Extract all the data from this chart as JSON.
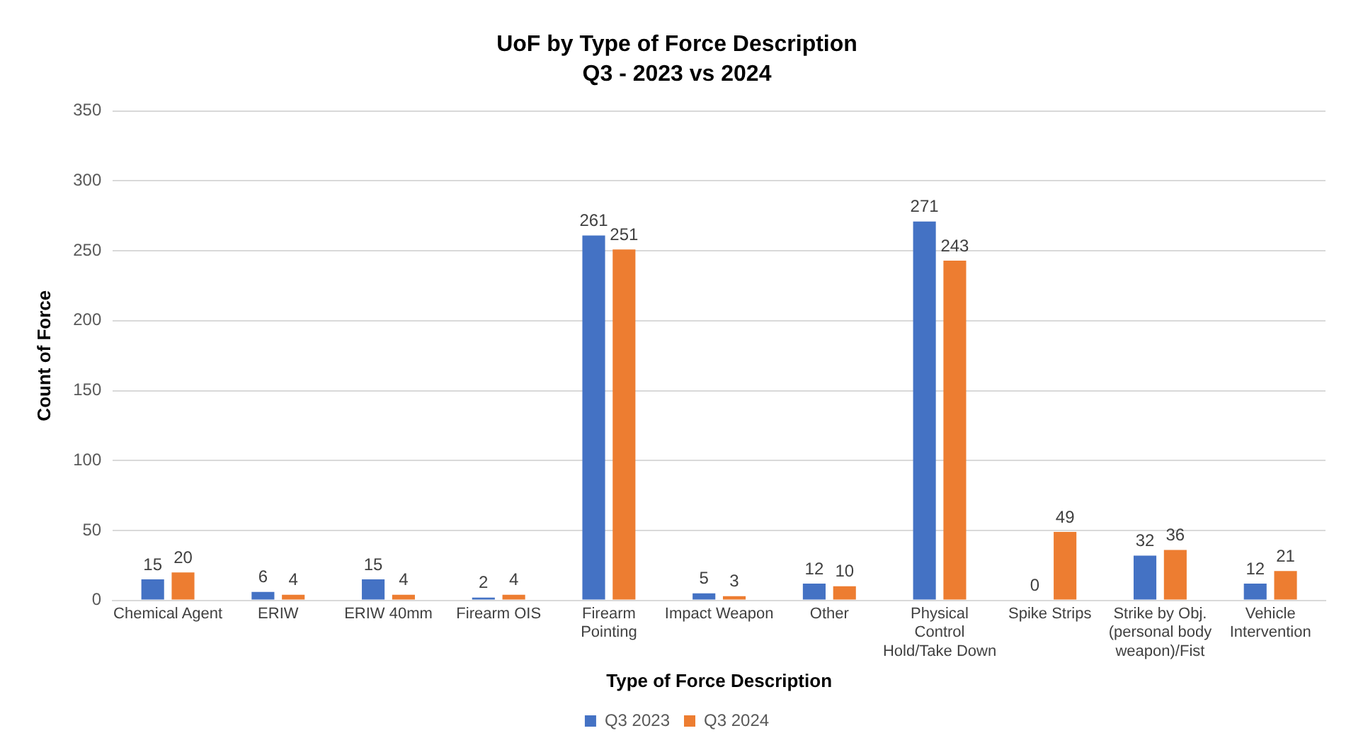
{
  "chart_data": {
    "type": "bar",
    "title": "UoF by Type of Force Description",
    "subtitle": "Q3 - 2023 vs 2024",
    "xlabel": "Type of Force Description",
    "ylabel": "Count of Force",
    "categories": [
      "Chemical Agent",
      "ERIW",
      "ERIW 40mm",
      "Firearm OIS",
      "Firearm Pointing",
      "Impact Weapon",
      "Other",
      "Physical Control Hold/Take Down",
      "Spike Strips",
      "Strike by Obj. (personal body weapon)/Fist",
      "Vehicle Intervention"
    ],
    "series": [
      {
        "name": "Q3 2023",
        "color": "#4472c4",
        "values": [
          15,
          6,
          15,
          2,
          261,
          5,
          12,
          271,
          0,
          32,
          12
        ]
      },
      {
        "name": "Q3 2024",
        "color": "#ed7d31",
        "values": [
          20,
          4,
          4,
          4,
          251,
          3,
          10,
          243,
          49,
          36,
          21
        ]
      }
    ],
    "ylim": [
      0,
      350
    ],
    "yticks": [
      0,
      50,
      100,
      150,
      200,
      250,
      300,
      350
    ],
    "grid": "y",
    "legend": "bottom",
    "data_labels": true
  }
}
